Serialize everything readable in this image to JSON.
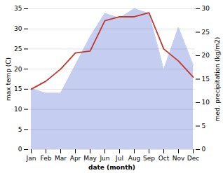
{
  "chart_data": {
    "type": "line",
    "xlabel": "date (month)",
    "ylabel": "max temp (C)",
    "y2label": "med. precipitation (kg/m2)",
    "categories": [
      "Jan",
      "Feb",
      "Mar",
      "Apr",
      "May",
      "Jun",
      "Jul",
      "Aug",
      "Sep",
      "Oct",
      "Nov",
      "Dec"
    ],
    "series": [
      {
        "type": "area",
        "axis": "y2",
        "color": "#c5cdf0",
        "values": [
          13.0,
          12.0,
          12.0,
          18.0,
          24.0,
          29.0,
          28.0,
          30.0,
          29.0,
          17.0,
          26.0,
          18.0
        ]
      },
      {
        "type": "line",
        "color": "#c0392b",
        "values": [
          15.0,
          17.0,
          20.0,
          24.0,
          24.5,
          32.0,
          33.0,
          33.0,
          34.0,
          25.0,
          22.0,
          18.0
        ]
      }
    ],
    "ylim": [
      0,
      35
    ],
    "yticks": [
      0,
      5,
      10,
      15,
      20,
      25,
      30,
      35
    ],
    "y2lim": [
      0,
      30
    ],
    "y2ticks": [
      0,
      5,
      10,
      15,
      20,
      25,
      30
    ],
    "grid": true
  }
}
